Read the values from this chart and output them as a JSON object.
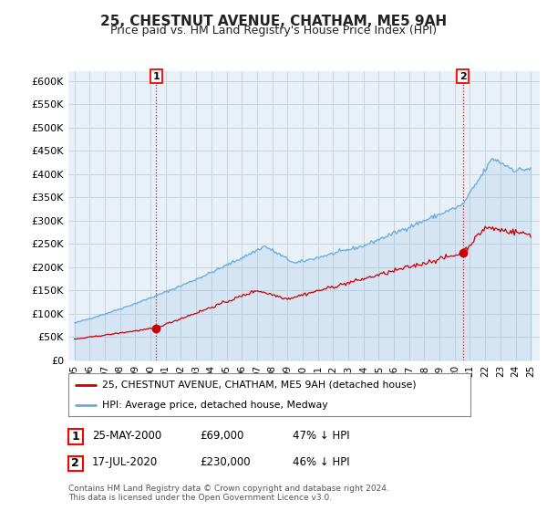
{
  "title": "25, CHESTNUT AVENUE, CHATHAM, ME5 9AH",
  "subtitle": "Price paid vs. HM Land Registry's House Price Index (HPI)",
  "ylim": [
    0,
    620000
  ],
  "yticks": [
    0,
    50000,
    100000,
    150000,
    200000,
    250000,
    300000,
    350000,
    400000,
    450000,
    500000,
    550000,
    600000
  ],
  "ytick_labels": [
    "£0",
    "£50K",
    "£100K",
    "£150K",
    "£200K",
    "£250K",
    "£300K",
    "£350K",
    "£400K",
    "£450K",
    "£500K",
    "£550K",
    "£600K"
  ],
  "hpi_color": "#6aacde",
  "hpi_fill_color": "#ddeeff",
  "price_color": "#cc0000",
  "m1_year": 2000.37,
  "m1_price": 69000,
  "m2_year": 2020.54,
  "m2_price": 230000,
  "legend_label1": "25, CHESTNUT AVENUE, CHATHAM, ME5 9AH (detached house)",
  "legend_label2": "HPI: Average price, detached house, Medway",
  "footer": "Contains HM Land Registry data © Crown copyright and database right 2024.\nThis data is licensed under the Open Government Licence v3.0.",
  "bg_color": "#ffffff",
  "plot_bg_color": "#e8f0f8",
  "grid_color": "#c8d4e0"
}
